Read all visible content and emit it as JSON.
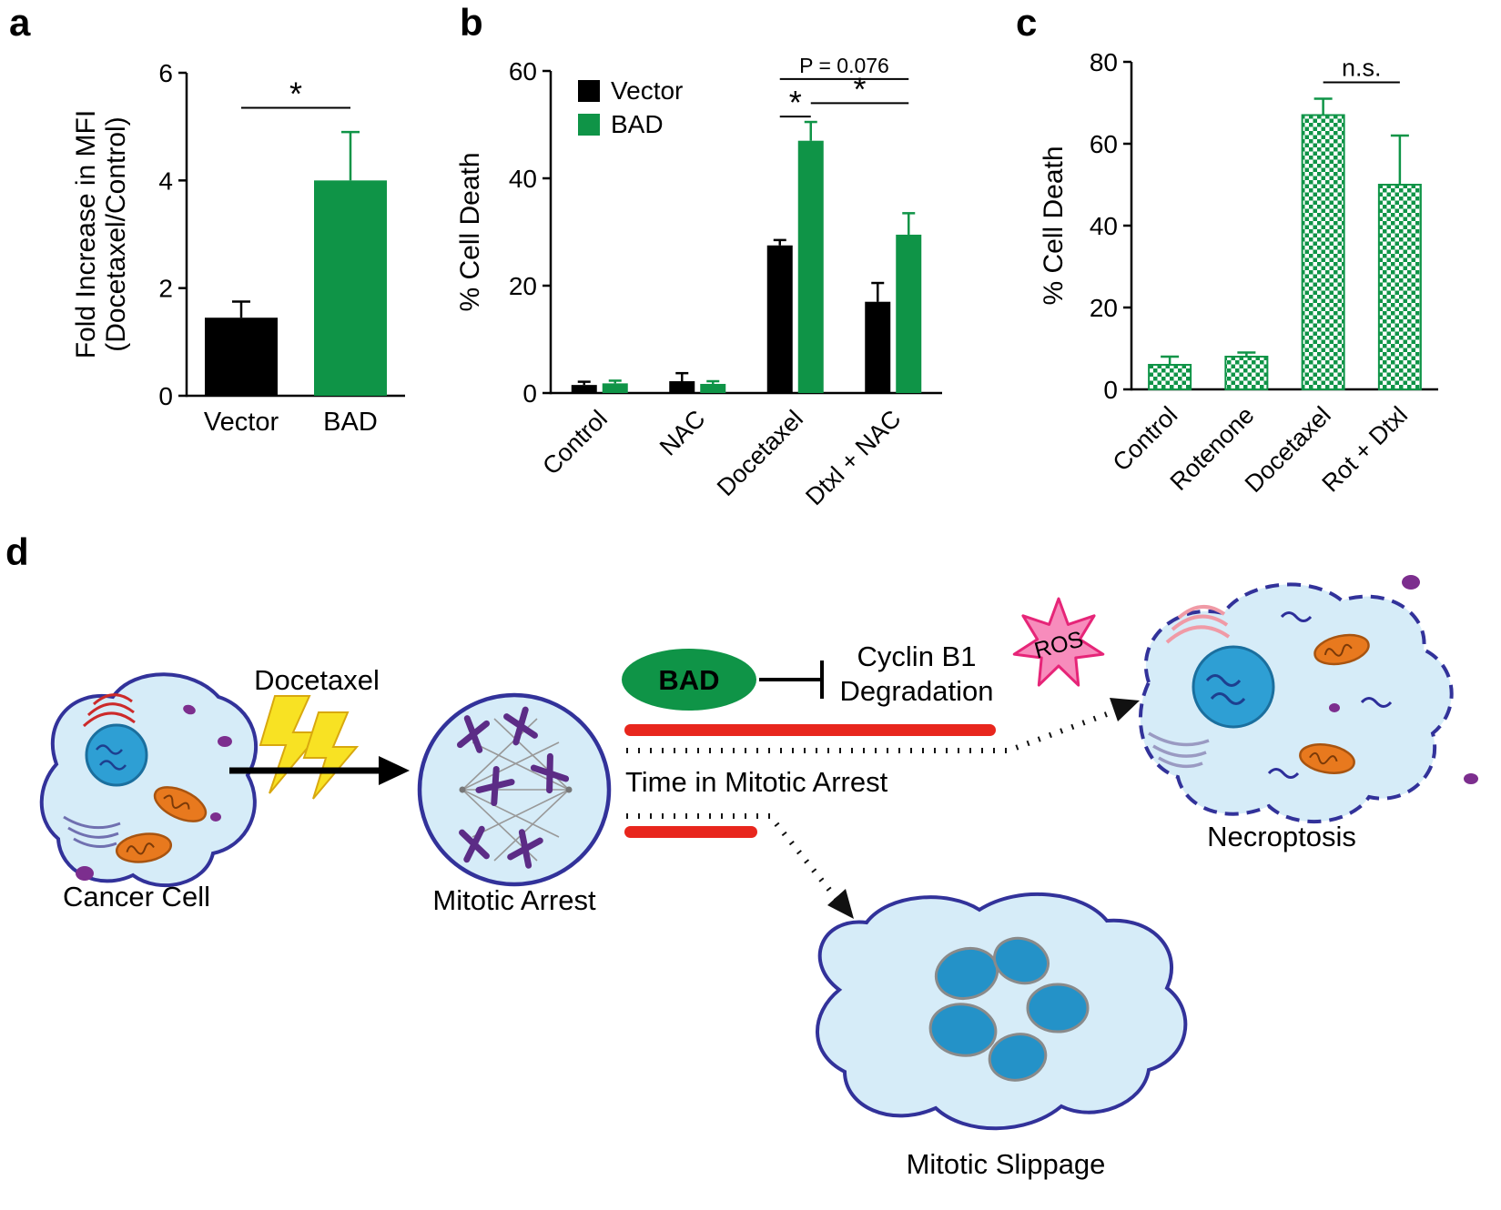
{
  "panels": {
    "a": "a",
    "b": "b",
    "c": "c",
    "d": "d"
  },
  "colors": {
    "green": "#0f9447",
    "black": "#000000",
    "red": "#e8261d",
    "pink": "#f78cbc",
    "pink_stroke": "#e62578",
    "light_blue": "#d6ecf8",
    "navy": "#32329a",
    "yellow": "#f8e223"
  },
  "chart_data": [
    {
      "id": "a",
      "type": "bar",
      "title": "",
      "ylabel_lines": [
        "Fold Increase in MFI",
        "(Docetaxel/Control)"
      ],
      "categories": [
        "Vector",
        "BAD"
      ],
      "series": [
        {
          "name": "",
          "colors": [
            "#000000",
            "#0f9447"
          ],
          "values": [
            1.45,
            4.0
          ],
          "errors": [
            0.3,
            0.9
          ]
        }
      ],
      "ylim": [
        0,
        6
      ],
      "yticks": [
        0,
        2,
        4,
        6
      ],
      "grid": false,
      "annotations": [
        {
          "text": "*",
          "g1": 0,
          "s1": 0,
          "g2": 1,
          "s2": 0,
          "y": 5.35
        }
      ]
    },
    {
      "id": "b",
      "type": "bar",
      "title": "",
      "ylabel": "% Cell Death",
      "categories": [
        "Control",
        "NAC",
        "Docetaxel",
        "Dtxl + NAC"
      ],
      "series": [
        {
          "name": "Vector",
          "color": "#000000",
          "values": [
            1.5,
            2.2,
            27.5,
            17.0
          ],
          "errors": [
            0.6,
            1.5,
            1.0,
            3.5
          ]
        },
        {
          "name": "BAD",
          "color": "#0f9447",
          "values": [
            1.8,
            1.7,
            47.0,
            29.5
          ],
          "errors": [
            0.5,
            0.5,
            3.5,
            4.0
          ]
        }
      ],
      "ylim": [
        0,
        60
      ],
      "yticks": [
        0,
        20,
        40,
        60
      ],
      "grid": false,
      "legend_position": "top-left",
      "annotations": [
        {
          "text": "P = 0.076",
          "g1": 2,
          "s1": 0,
          "g2": 3,
          "s2": 1,
          "y": 58.5
        },
        {
          "text": "*",
          "g1": 2,
          "s1": 1,
          "g2": 3,
          "s2": 1,
          "y": 54.0
        },
        {
          "text": "*",
          "g1": 2,
          "s1": 0,
          "g2": 2,
          "s2": 1,
          "y": 51.5
        }
      ]
    },
    {
      "id": "c",
      "type": "bar",
      "title": "",
      "ylabel": "% Cell Death",
      "categories": [
        "Control",
        "Rotenone",
        "Docetaxel",
        "Rot + Dtxl"
      ],
      "series": [
        {
          "name": "",
          "color": "#0f9447",
          "pattern": "checker",
          "values": [
            6.0,
            8.0,
            67.0,
            50.0
          ],
          "errors": [
            2.0,
            1.0,
            4.0,
            12.0
          ]
        }
      ],
      "ylim": [
        0,
        80
      ],
      "yticks": [
        0,
        20,
        40,
        60,
        80
      ],
      "grid": false,
      "annotations": [
        {
          "text": "n.s.",
          "g1": 2,
          "s1": 0,
          "g2": 3,
          "s2": 0,
          "y": 75.0
        }
      ]
    }
  ],
  "diagram": {
    "cancer_cell_label": "Cancer Cell",
    "docetaxel_label": "Docetaxel",
    "mitotic_arrest_label": "Mitotic Arrest",
    "bad_label": "BAD",
    "cyclin_line1": "Cyclin B1",
    "cyclin_line2": "Degradation",
    "ros_label": "ROS",
    "time_label": "Time in Mitotic Arrest",
    "necroptosis_label": "Necroptosis",
    "slippage_label": "Mitotic Slippage"
  }
}
